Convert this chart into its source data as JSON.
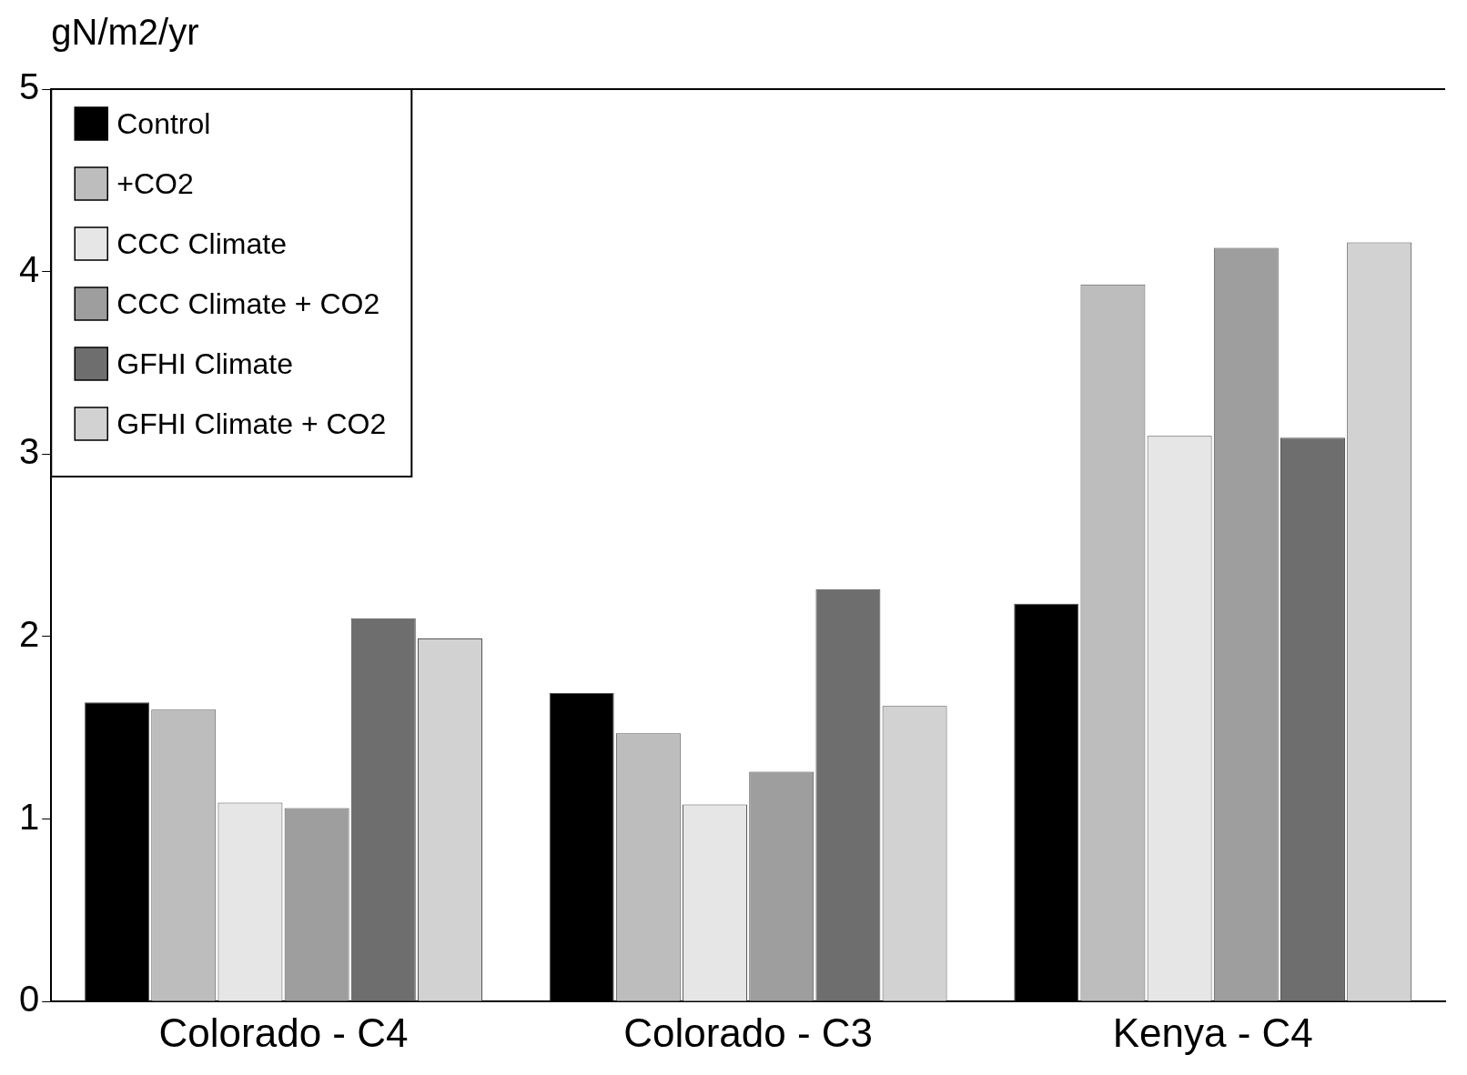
{
  "chart_data": {
    "type": "bar",
    "ylabel": "gN/m2/yr",
    "categories": [
      "Colorado - C4",
      "Colorado - C3",
      "Kenya - C4"
    ],
    "series": [
      {
        "name": "Control",
        "color": "#000000",
        "values": [
          1.64,
          1.69,
          2.18
        ]
      },
      {
        "name": "+CO2",
        "color": "#bdbdbd",
        "values": [
          1.6,
          1.47,
          3.93
        ]
      },
      {
        "name": "CCC Climate",
        "color": "#e6e6e6",
        "values": [
          1.09,
          1.08,
          3.1
        ]
      },
      {
        "name": "CCC Climate + CO2",
        "color": "#9e9e9e",
        "values": [
          1.06,
          1.26,
          4.13
        ]
      },
      {
        "name": "GFHI Climate",
        "color": "#6e6e6e",
        "values": [
          2.1,
          2.26,
          3.09
        ]
      },
      {
        "name": "GFHI Climate + CO2",
        "color": "#d2d2d2",
        "values": [
          1.99,
          1.62,
          4.16
        ]
      }
    ],
    "ylim": [
      0,
      5
    ],
    "yticks": [
      0,
      1,
      2,
      3,
      4,
      5
    ],
    "grid": false,
    "legend": "top left"
  }
}
